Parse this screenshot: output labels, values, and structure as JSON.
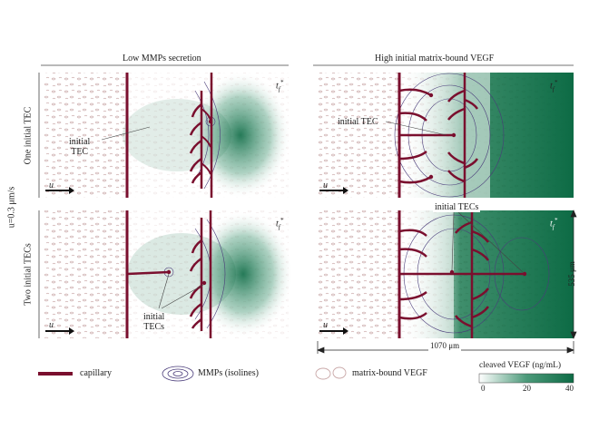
{
  "columns": {
    "left": "Low MMPs secretion",
    "right": "High initial matrix-bound VEGF"
  },
  "rows": {
    "top": "One initial TEC",
    "bottom": "Two initial TECs",
    "velocity": "u=0.3 μm/s"
  },
  "panel_labels": {
    "time": "t",
    "time_sub": "f",
    "time_sup": "*",
    "flow": "u"
  },
  "annotations": {
    "initial_tec_top_left_1": "initial",
    "initial_tec_top_left_2": "TEC",
    "initial_tec_top_right": "initial TEC",
    "initial_tecs_bottom_left_1": "initial",
    "initial_tecs_bottom_left_2": "TECs",
    "initial_tecs_bottom_right": "initial TECs"
  },
  "dimensions": {
    "height": "535 μm",
    "width": "1070 μm"
  },
  "legend": {
    "capillary": "capillary",
    "mmps": "MMPs (isolines)",
    "vegf_bound": "matrix-bound VEGF",
    "colorbar_title": "cleaved VEGF (ng/mL)",
    "colorbar_ticks": [
      "0",
      "20",
      "40"
    ]
  },
  "colors": {
    "capillary": "#7a0f2e",
    "vegf_high": "#0d6b45",
    "mmp_isoline": "#4a3c7a",
    "matrix_vegf": "#c9a8a8"
  }
}
